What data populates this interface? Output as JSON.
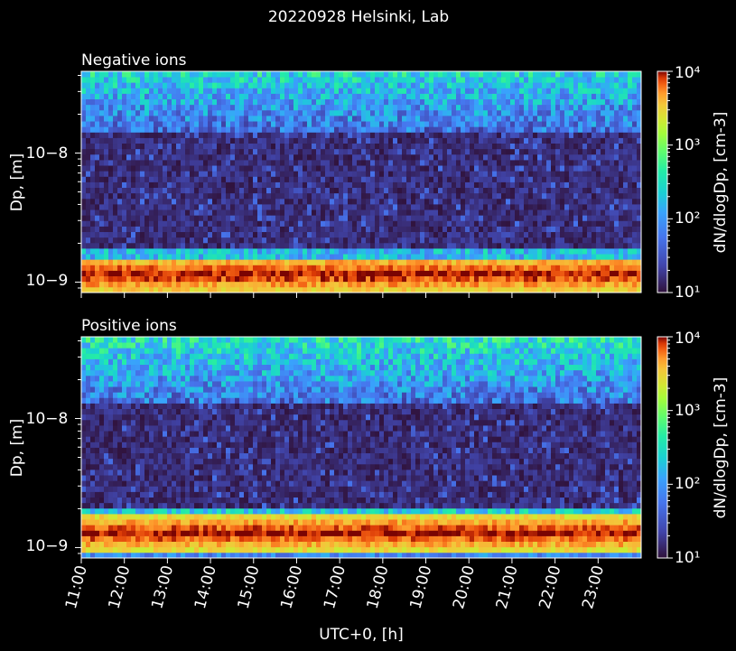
{
  "figure": {
    "title": "20220928 Helsinki, Lab"
  },
  "colors": {
    "background": "#000000",
    "axes": "#ffffff"
  },
  "chart_data": [
    {
      "type": "heatmap",
      "title": "Negative ions",
      "xlabel": "",
      "ylabel": "Dp, [m]",
      "y_scale": "log",
      "ylim": [
        8.3e-10,
        4.3e-08
      ],
      "y_tick_labels": [
        "10−9",
        "10−8"
      ],
      "x_tick_labels": [],
      "x_range_hours": [
        11,
        24
      ],
      "colorbar": {
        "label": "dN/dlogDp, [cm-3]",
        "scale": "log",
        "range": [
          10,
          10000
        ],
        "tick_labels": [
          "10¹",
          "10²",
          "10³",
          "10⁴"
        ],
        "colormap": "turbo"
      },
      "bands": [
        {
          "dp_from": 8.3e-10,
          "dp_to": 1.5e-09,
          "level": "~3000-10000 dN/dlogDp (peak near 1.1e-9 m)"
        },
        {
          "dp_from": 1.5e-09,
          "dp_to": 1.8e-09,
          "level": "~100-1000 dN/dlogDp"
        },
        {
          "dp_from": 1.8e-09,
          "dp_to": 1.5e-08,
          "level": "~10-30 dN/dlogDp"
        },
        {
          "dp_from": 1.5e-08,
          "dp_to": 4.3e-08,
          "level": "~30-300 dN/dlogDp"
        }
      ]
    },
    {
      "type": "heatmap",
      "title": "Positive ions",
      "xlabel": "UTC+0, [h]",
      "ylabel": "Dp, [m]",
      "y_scale": "log",
      "ylim": [
        8.3e-10,
        4.3e-08
      ],
      "y_tick_labels": [
        "10−9",
        "10−8"
      ],
      "x_tick_labels": [
        "11:00",
        "12:00",
        "13:00",
        "14:00",
        "15:00",
        "16:00",
        "17:00",
        "18:00",
        "19:00",
        "20:00",
        "21:00",
        "22:00",
        "23:00"
      ],
      "x_range_hours": [
        11,
        24
      ],
      "colorbar": {
        "label": "dN/dlogDp, [cm-3]",
        "scale": "log",
        "range": [
          10,
          10000
        ],
        "tick_labels": [
          "10¹",
          "10²",
          "10³",
          "10⁴"
        ],
        "colormap": "turbo"
      },
      "bands": [
        {
          "dp_from": 8.3e-10,
          "dp_to": 9.5e-10,
          "level": "~100 dN/dlogDp"
        },
        {
          "dp_from": 9.5e-10,
          "dp_to": 1.8e-09,
          "level": "~3000-10000 dN/dlogDp (peak near 1.3e-9 m)"
        },
        {
          "dp_from": 1.8e-09,
          "dp_to": 2e-09,
          "level": "~100-500 dN/dlogDp"
        },
        {
          "dp_from": 2e-09,
          "dp_to": 1.3e-08,
          "level": "~10-30 dN/dlogDp"
        },
        {
          "dp_from": 1.3e-08,
          "dp_to": 4.3e-08,
          "level": "~30-300 dN/dlogDp"
        }
      ]
    }
  ]
}
